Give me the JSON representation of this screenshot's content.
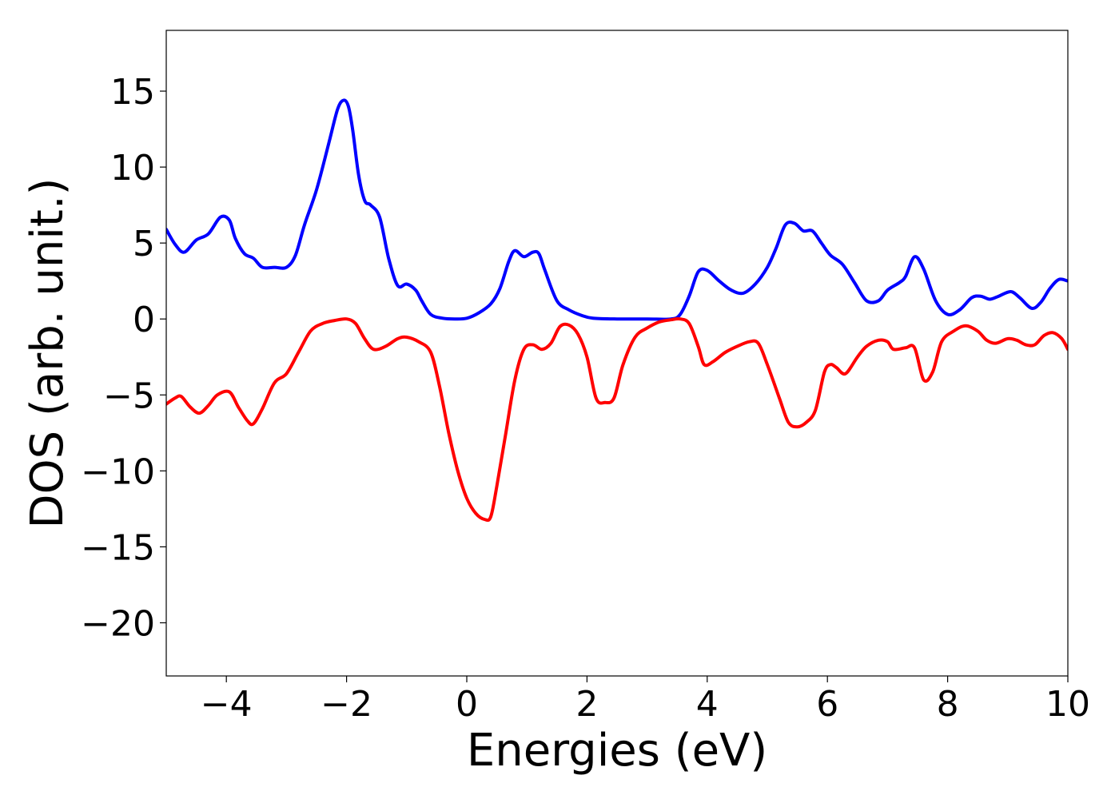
{
  "chart_data": {
    "type": "line",
    "title": "",
    "xlabel": "Energies (eV)",
    "ylabel": "DOS (arb. unit.)",
    "xlim": [
      -5,
      10
    ],
    "ylim": [
      -23.5,
      19
    ],
    "grid": false,
    "xticks": [
      -4,
      -2,
      0,
      2,
      4,
      6,
      8,
      10
    ],
    "xtick_labels": [
      "−4",
      "−2",
      "0",
      "2",
      "4",
      "6",
      "8",
      "10"
    ],
    "yticks": [
      -20,
      -15,
      -10,
      -5,
      0,
      5,
      10,
      15
    ],
    "ytick_labels": [
      "−20",
      "−15",
      "−10",
      "−5",
      "0",
      "5",
      "10",
      "15"
    ],
    "series": [
      {
        "color": "#0000ff",
        "x": [
          -5.0,
          -4.85,
          -4.7,
          -4.5,
          -4.3,
          -4.1,
          -3.95,
          -3.85,
          -3.7,
          -3.55,
          -3.4,
          -3.2,
          -3.0,
          -2.85,
          -2.7,
          -2.5,
          -2.3,
          -2.15,
          -2.05,
          -1.97,
          -1.9,
          -1.8,
          -1.7,
          -1.6,
          -1.45,
          -1.3,
          -1.15,
          -1.0,
          -0.85,
          -0.75,
          -0.6,
          -0.4,
          -0.2,
          0.0,
          0.2,
          0.4,
          0.55,
          0.7,
          0.8,
          0.95,
          1.1,
          1.2,
          1.3,
          1.5,
          1.7,
          1.9,
          2.1,
          2.5,
          3.0,
          3.4,
          3.55,
          3.7,
          3.85,
          4.0,
          4.2,
          4.4,
          4.6,
          4.8,
          5.0,
          5.15,
          5.3,
          5.45,
          5.6,
          5.75,
          5.9,
          6.05,
          6.25,
          6.45,
          6.65,
          6.85,
          7.0,
          7.2,
          7.3,
          7.45,
          7.6,
          7.8,
          8.0,
          8.2,
          8.4,
          8.55,
          8.7,
          8.85,
          9.05,
          9.2,
          9.4,
          9.55,
          9.7,
          9.85,
          10.0
        ],
        "y": [
          5.9,
          4.9,
          4.4,
          5.2,
          5.6,
          6.7,
          6.5,
          5.3,
          4.3,
          4.0,
          3.4,
          3.4,
          3.4,
          4.2,
          6.2,
          8.5,
          11.5,
          13.8,
          14.4,
          14.0,
          12.5,
          9.5,
          7.8,
          7.5,
          6.7,
          4.0,
          2.2,
          2.3,
          1.9,
          1.2,
          0.3,
          0.05,
          0.0,
          0.05,
          0.4,
          1.0,
          2.0,
          3.8,
          4.5,
          4.1,
          4.4,
          4.3,
          3.2,
          1.2,
          0.6,
          0.25,
          0.05,
          0.0,
          0.0,
          0.0,
          0.3,
          1.5,
          3.1,
          3.2,
          2.5,
          1.9,
          1.7,
          2.3,
          3.4,
          4.7,
          6.2,
          6.3,
          5.8,
          5.8,
          5.0,
          4.2,
          3.6,
          2.4,
          1.2,
          1.2,
          1.9,
          2.4,
          2.8,
          4.1,
          3.3,
          1.2,
          0.3,
          0.6,
          1.4,
          1.5,
          1.3,
          1.5,
          1.8,
          1.4,
          0.7,
          1.1,
          2.0,
          2.6,
          2.5
        ]
      },
      {
        "color": "#ff0000",
        "x": [
          -5.0,
          -4.85,
          -4.75,
          -4.6,
          -4.45,
          -4.3,
          -4.15,
          -3.95,
          -3.8,
          -3.65,
          -3.55,
          -3.4,
          -3.2,
          -3.0,
          -2.8,
          -2.6,
          -2.4,
          -2.2,
          -2.0,
          -1.85,
          -1.7,
          -1.55,
          -1.35,
          -1.15,
          -1.0,
          -0.8,
          -0.6,
          -0.45,
          -0.3,
          -0.15,
          0.0,
          0.15,
          0.3,
          0.4,
          0.5,
          0.65,
          0.8,
          0.95,
          1.1,
          1.25,
          1.4,
          1.55,
          1.7,
          1.85,
          2.0,
          2.15,
          2.3,
          2.45,
          2.6,
          2.8,
          3.0,
          3.2,
          3.4,
          3.55,
          3.7,
          3.85,
          3.95,
          4.1,
          4.3,
          4.5,
          4.7,
          4.85,
          5.0,
          5.2,
          5.35,
          5.5,
          5.65,
          5.8,
          5.95,
          6.05,
          6.15,
          6.3,
          6.5,
          6.65,
          6.85,
          7.0,
          7.1,
          7.3,
          7.45,
          7.6,
          7.75,
          7.9,
          8.1,
          8.3,
          8.5,
          8.65,
          8.8,
          9.0,
          9.15,
          9.3,
          9.45,
          9.6,
          9.75,
          9.9,
          10.0
        ],
        "y": [
          -5.6,
          -5.2,
          -5.1,
          -5.8,
          -6.2,
          -5.7,
          -5.0,
          -4.8,
          -5.8,
          -6.7,
          -6.9,
          -5.9,
          -4.2,
          -3.6,
          -2.2,
          -0.8,
          -0.3,
          -0.1,
          0.0,
          -0.3,
          -1.3,
          -2.0,
          -1.8,
          -1.3,
          -1.2,
          -1.5,
          -2.2,
          -4.5,
          -7.5,
          -10.0,
          -11.8,
          -12.8,
          -13.2,
          -13.0,
          -11.0,
          -7.5,
          -4.0,
          -2.0,
          -1.7,
          -2.0,
          -1.6,
          -0.5,
          -0.4,
          -1.0,
          -2.5,
          -5.2,
          -5.5,
          -5.2,
          -3.0,
          -1.2,
          -0.6,
          -0.2,
          -0.05,
          -0.0,
          -0.3,
          -1.8,
          -3.0,
          -2.8,
          -2.2,
          -1.8,
          -1.5,
          -1.6,
          -3.0,
          -5.2,
          -6.8,
          -7.1,
          -6.8,
          -6.0,
          -3.5,
          -3.0,
          -3.2,
          -3.6,
          -2.5,
          -1.8,
          -1.4,
          -1.5,
          -2.0,
          -1.9,
          -1.9,
          -4.0,
          -3.5,
          -1.5,
          -0.8,
          -0.45,
          -0.8,
          -1.4,
          -1.6,
          -1.3,
          -1.4,
          -1.7,
          -1.7,
          -1.1,
          -0.9,
          -1.3,
          -2.0
        ]
      }
    ]
  }
}
